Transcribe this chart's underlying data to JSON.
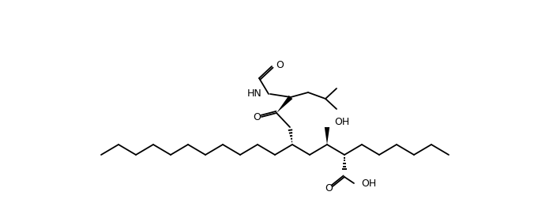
{
  "bg_color": "#ffffff",
  "line_color": "#000000",
  "lw": 1.3,
  "figsize": [
    7.0,
    2.76
  ],
  "dpi": 100,
  "labels": {
    "O1": "O",
    "O2": "O",
    "O3": "O",
    "O4": "O",
    "HN": "HN",
    "OH1": "OH",
    "OH2": "OH"
  }
}
